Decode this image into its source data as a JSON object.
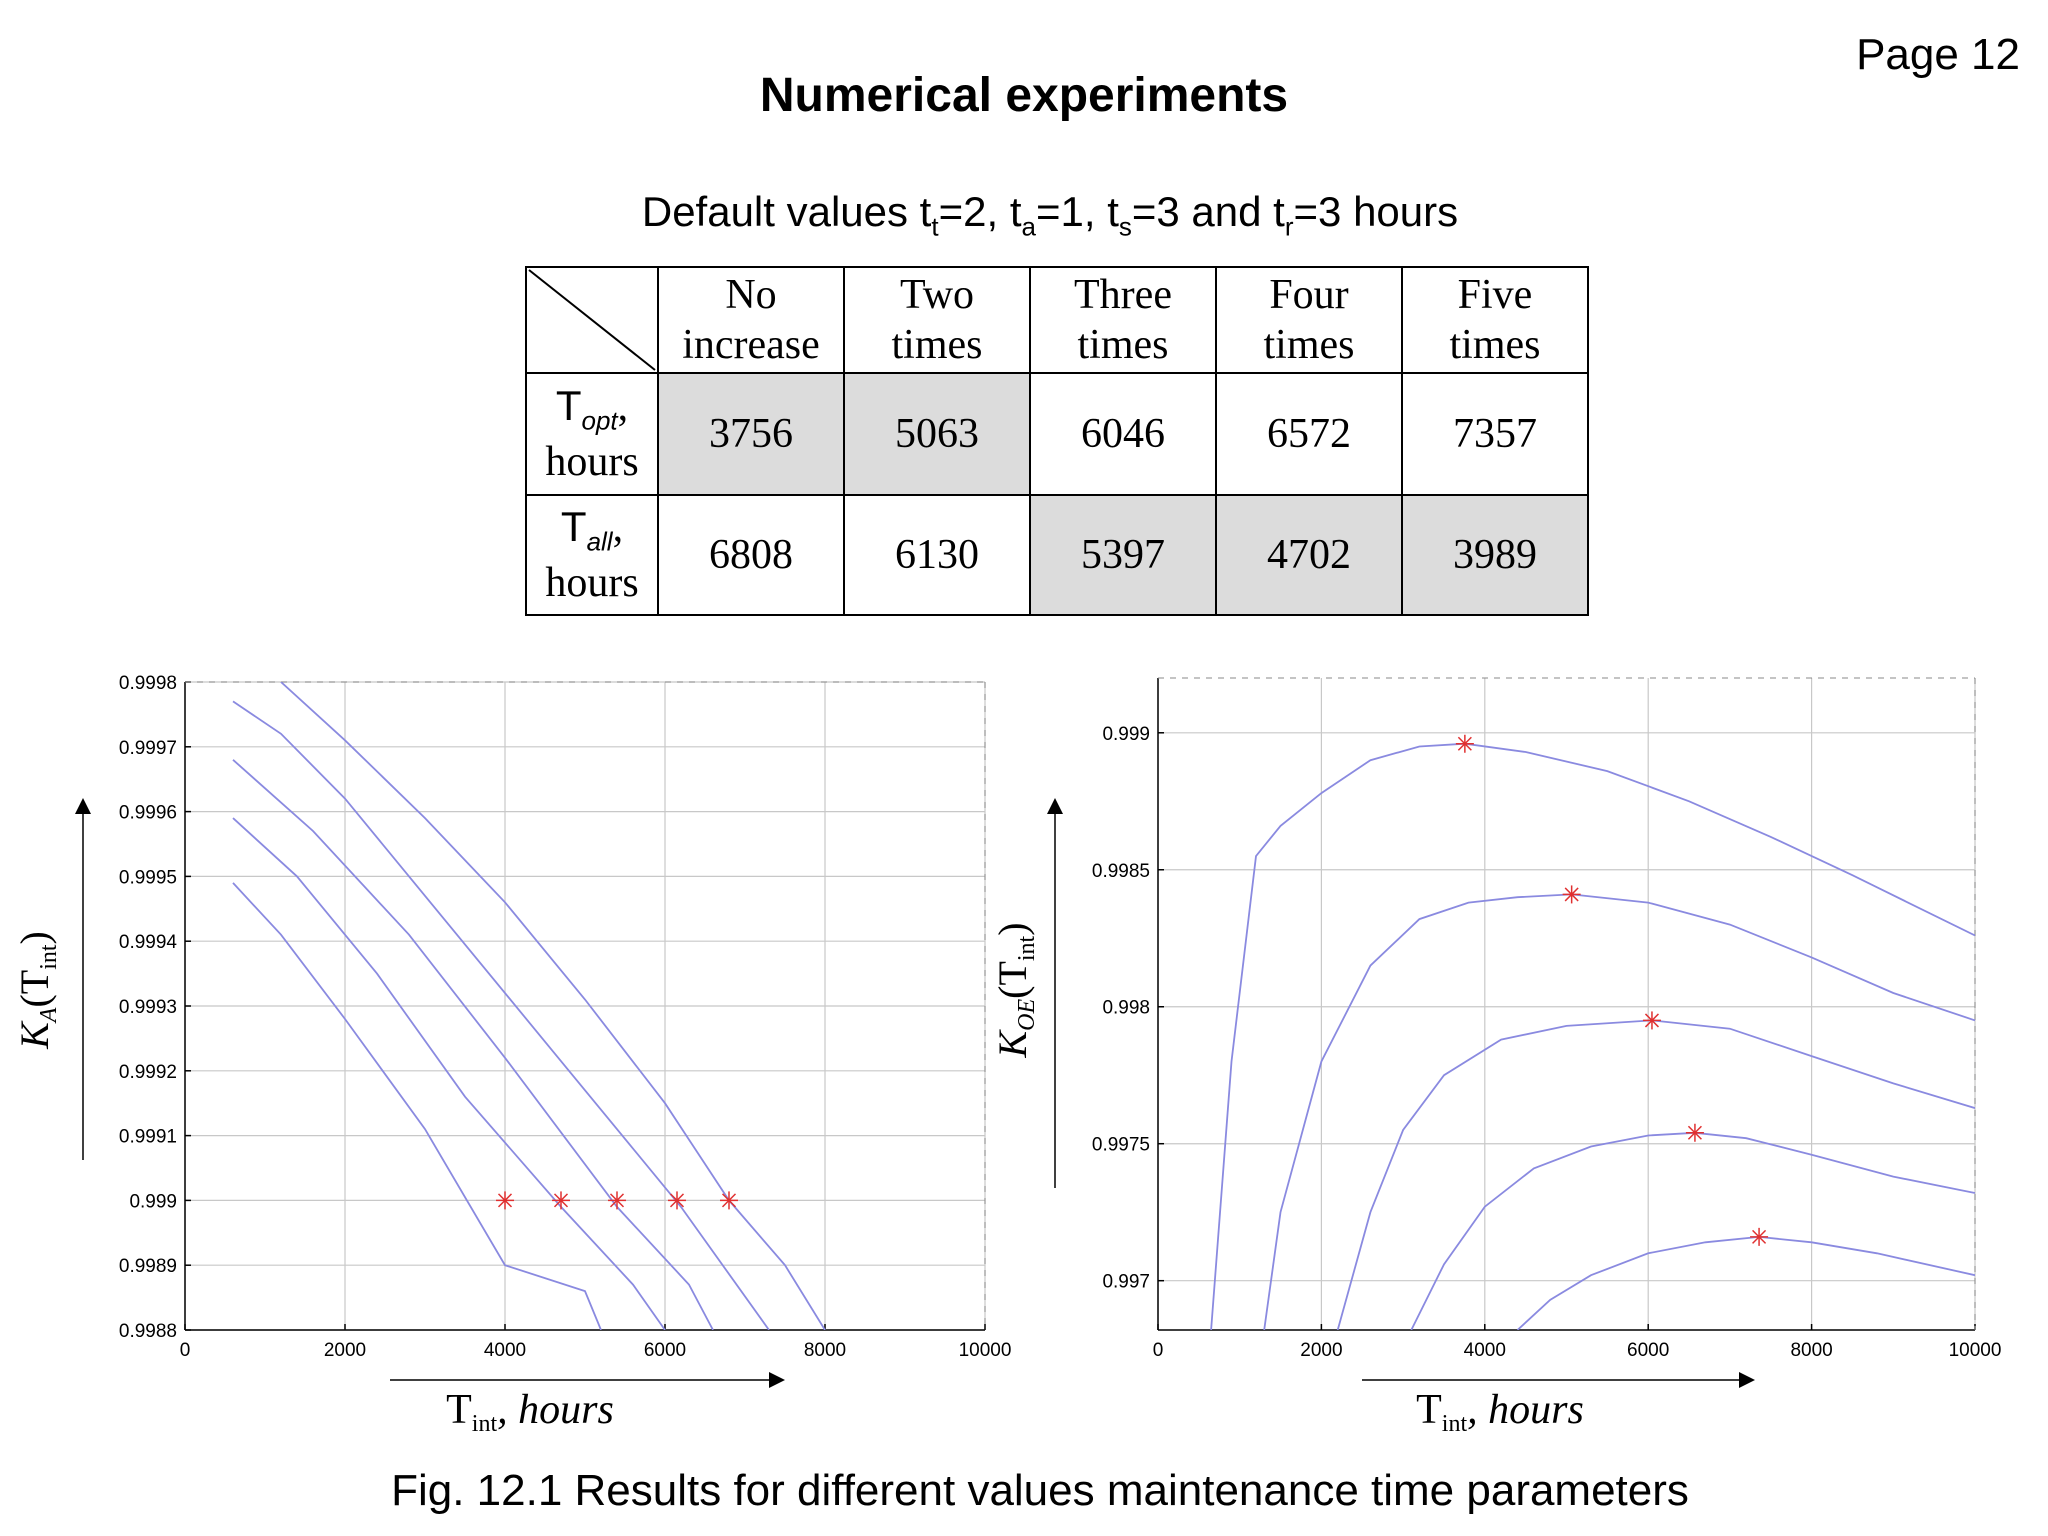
{
  "page_label": "Page 12",
  "title": "Numerical experiments",
  "subtitle": {
    "prefix": "Default values t",
    "t_sub": "t",
    "t_val": "=2, t",
    "a_sub": "a",
    "a_val": "=1, t",
    "s_sub": "s",
    "s_val": "=3 and t",
    "r_sub": "r",
    "r_val": "=3 hours"
  },
  "table": {
    "columns": [
      {
        "line1": "No",
        "line2": "increase"
      },
      {
        "line1": "Two",
        "line2": "times"
      },
      {
        "line1": "Three",
        "line2": "times"
      },
      {
        "line1": "Four",
        "line2": "times"
      },
      {
        "line1": "Five",
        "line2": "times"
      }
    ],
    "rows": [
      {
        "symbol": "T",
        "sub": "opt",
        "comma": ",",
        "unit": "hours",
        "values": [
          "3756",
          "5063",
          "6046",
          "6572",
          "7357"
        ],
        "shaded": [
          true,
          true,
          false,
          false,
          false
        ]
      },
      {
        "symbol": "T",
        "sub": "all",
        "comma": ",",
        "unit": "hours",
        "values": [
          "6808",
          "6130",
          "5397",
          "4702",
          "3989"
        ],
        "shaded": [
          false,
          false,
          true,
          true,
          true
        ]
      }
    ]
  },
  "chart_data": [
    {
      "type": "line",
      "ylabel": {
        "main": "K",
        "sub": "A",
        "arg_open": "(T",
        "arg_sub": "int",
        "arg_close": ")"
      },
      "xlabel": {
        "main": "T",
        "sub": "int",
        "rest": ", hours"
      },
      "xlim": [
        0,
        10000
      ],
      "ylim": [
        0.9988,
        0.9998
      ],
      "xticks": [
        "0",
        "2000",
        "4000",
        "6000",
        "8000",
        "10000"
      ],
      "yticks": [
        "0.9988",
        "0.9989",
        "0.999",
        "0.9991",
        "0.9992",
        "0.9993",
        "0.9994",
        "0.9995",
        "0.9996",
        "0.9997",
        "0.9998"
      ],
      "grid": true,
      "line_color": "#8a8ae0",
      "marker_color": "#e03030",
      "series": [
        {
          "x": [
            600,
            1200,
            2000,
            3000,
            4000,
            5000,
            5200
          ],
          "y": [
            0.99949,
            0.99941,
            0.99928,
            0.99911,
            0.9989,
            0.99886,
            0.9988
          ]
        },
        {
          "x": [
            600,
            1400,
            2400,
            3500,
            4700,
            5600,
            6000
          ],
          "y": [
            0.99959,
            0.9995,
            0.99935,
            0.99916,
            0.99899,
            0.99887,
            0.9988
          ]
        },
        {
          "x": [
            600,
            1600,
            2800,
            4000,
            5400,
            6300,
            6600
          ],
          "y": [
            0.99968,
            0.99957,
            0.99941,
            0.99922,
            0.99899,
            0.99887,
            0.9988
          ]
        },
        {
          "x": [
            600,
            1200,
            2000,
            3200,
            4600,
            6200,
            7300
          ],
          "y": [
            0.99977,
            0.99972,
            0.99962,
            0.99944,
            0.99923,
            0.99899,
            0.9988
          ]
        },
        {
          "x": [
            1200,
            2000,
            3000,
            4000,
            5000,
            6000,
            6800,
            7500,
            8000
          ],
          "y": [
            0.9998,
            0.99971,
            0.99959,
            0.99946,
            0.99931,
            0.99915,
            0.999,
            0.9989,
            0.9988
          ]
        }
      ],
      "markers": {
        "x": [
          4000,
          4700,
          5400,
          6150,
          6800
        ],
        "y": [
          0.999,
          0.999,
          0.999,
          0.999,
          0.999
        ]
      }
    },
    {
      "type": "line",
      "ylabel": {
        "main": "K",
        "sub": "OE",
        "arg_open": "(T",
        "arg_sub": "int",
        "arg_close": ")"
      },
      "xlabel": {
        "main": "T",
        "sub": "int",
        "rest": ", hours"
      },
      "xlim": [
        0,
        10000
      ],
      "ylim": [
        0.99682,
        0.9992
      ],
      "xticks": [
        "0",
        "2000",
        "4000",
        "6000",
        "8000",
        "10000"
      ],
      "yticks": [
        "0.997",
        "0.9975",
        "0.998",
        "0.9985",
        "0.999"
      ],
      "ytick_values": [
        0.997,
        0.9975,
        0.998,
        0.9985,
        0.999
      ],
      "grid": true,
      "line_color": "#8a8ae0",
      "marker_color": "#e03030",
      "series": [
        {
          "x": [
            650,
            900,
            1200,
            1500,
            2000,
            2600,
            3200,
            3756,
            4500,
            5500,
            6500,
            7500,
            8500,
            10000
          ],
          "y": [
            0.99682,
            0.9978,
            0.99855,
            0.99866,
            0.99878,
            0.9989,
            0.99895,
            0.99896,
            0.99893,
            0.99886,
            0.99875,
            0.99862,
            0.99848,
            0.99826
          ]
        },
        {
          "x": [
            1300,
            1500,
            2000,
            2600,
            3200,
            3800,
            4400,
            5063,
            6000,
            7000,
            8000,
            9000,
            10000
          ],
          "y": [
            0.99682,
            0.99725,
            0.9978,
            0.99815,
            0.99832,
            0.99838,
            0.9984,
            0.99841,
            0.99838,
            0.9983,
            0.99818,
            0.99805,
            0.99795
          ]
        },
        {
          "x": [
            2200,
            2600,
            3000,
            3500,
            4200,
            5000,
            6046,
            7000,
            8000,
            9000,
            10000
          ],
          "y": [
            0.99682,
            0.99725,
            0.99755,
            0.99775,
            0.99788,
            0.99793,
            0.99795,
            0.99792,
            0.99782,
            0.99772,
            0.99763
          ]
        },
        {
          "x": [
            3100,
            3500,
            4000,
            4600,
            5300,
            6000,
            6572,
            7200,
            8000,
            9000,
            10000
          ],
          "y": [
            0.99682,
            0.99706,
            0.99727,
            0.99741,
            0.99749,
            0.99753,
            0.99754,
            0.99752,
            0.99746,
            0.99738,
            0.99732
          ]
        },
        {
          "x": [
            4400,
            4800,
            5300,
            6000,
            6700,
            7357,
            8000,
            8800,
            10000
          ],
          "y": [
            0.99682,
            0.99693,
            0.99702,
            0.9971,
            0.99714,
            0.99716,
            0.99714,
            0.9971,
            0.99702
          ]
        }
      ],
      "markers": {
        "x": [
          3756,
          5063,
          6046,
          6572,
          7357
        ],
        "y": [
          0.99896,
          0.99841,
          0.99795,
          0.99754,
          0.99716
        ]
      }
    }
  ],
  "caption": "Fig. 12.1 Results for different values maintenance time parameters"
}
